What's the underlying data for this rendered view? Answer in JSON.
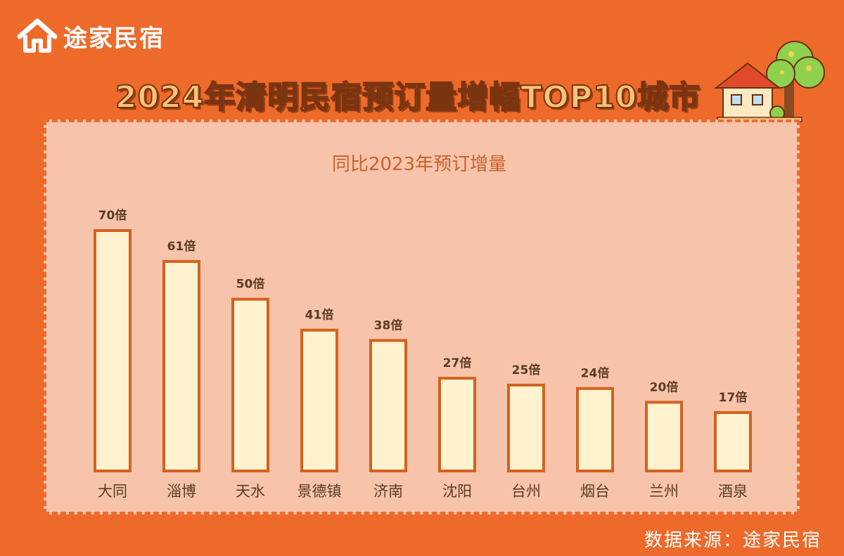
{
  "brand": {
    "name": "途家民宿"
  },
  "title": "2024年清明民宿预订量增幅TOP10城市",
  "source": "数据来源：途家民宿",
  "colors": {
    "background": "#ee6a2b",
    "panel": "#f7c4ab",
    "bar_fill": "#fff3cf",
    "bar_stroke": "#d4611f",
    "subtitle": "#c8622a",
    "label": "#5a3a24"
  },
  "chart_data": {
    "type": "bar",
    "title": "同比2023年预订增量",
    "categories": [
      "大同",
      "淄博",
      "天水",
      "景德镇",
      "济南",
      "沈阳",
      "台州",
      "烟台",
      "兰州",
      "酒泉"
    ],
    "values": [
      70,
      61,
      50,
      41,
      38,
      27,
      25,
      24,
      20,
      17
    ],
    "data_labels": [
      "70倍",
      "61倍",
      "50倍",
      "41倍",
      "38倍",
      "27倍",
      "25倍",
      "24倍",
      "20倍",
      "17倍"
    ],
    "ylim": [
      0,
      70
    ],
    "grid": false,
    "legend": "none"
  }
}
